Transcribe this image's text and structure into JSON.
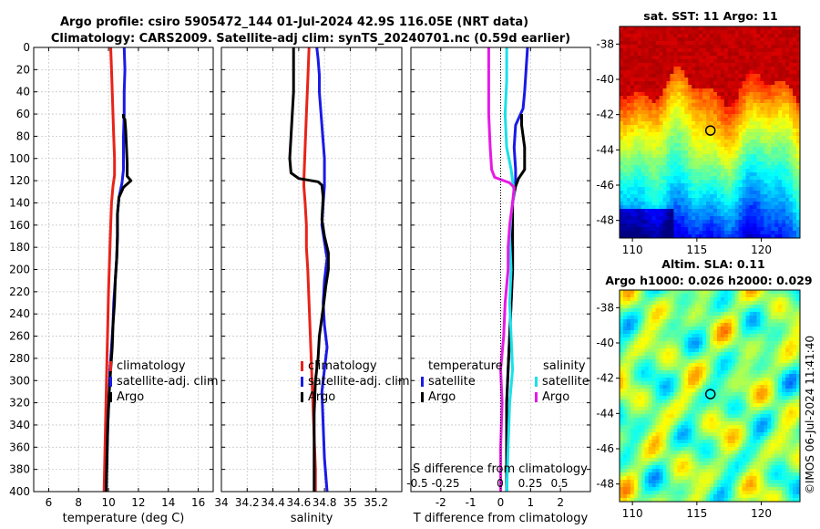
{
  "title_line1": "Argo profile: csiro 5905472_144 01-Jul-2024 42.9S 116.05E (NRT data)",
  "title_line2": "Climatology: CARS2009. Satellite-adj clim: synTS_20240701.nc (0.59d earlier)",
  "sst_title": "sat. SST: 11 Argo: 11",
  "sla_title1": "Altim. SLA: 0.11",
  "sla_title2": "Argo h1000: 0.026 h2000: 0.029",
  "watermark": "©IMOS 06-Jul-2024 11:41:40",
  "colors": {
    "climatology": "#e8231a",
    "satellite": "#1a1ae6",
    "argo": "#000000",
    "salinity_sat": "#19e1e8",
    "salinity_argo": "#e619e6",
    "grid": "#c8c8c8"
  },
  "chart_data": [
    {
      "type": "line",
      "name": "temperature-panel",
      "xlabel": "temperature (deg C)",
      "ylabel": "",
      "xlim": [
        5,
        17
      ],
      "ylim": [
        400,
        0
      ],
      "xticks": [
        6,
        8,
        10,
        12,
        14,
        16
      ],
      "yticks": [
        0,
        20,
        40,
        60,
        80,
        100,
        120,
        140,
        160,
        180,
        200,
        220,
        240,
        260,
        280,
        300,
        320,
        340,
        360,
        380,
        400
      ],
      "legend": [
        "climatology",
        "satellite-adj. clim",
        "Argo"
      ],
      "series": [
        {
          "name": "climatology",
          "color_key": "climatology",
          "points": [
            [
              10.15,
              0
            ],
            [
              10.2,
              20
            ],
            [
              10.25,
              40
            ],
            [
              10.3,
              60
            ],
            [
              10.35,
              80
            ],
            [
              10.4,
              100
            ],
            [
              10.4,
              115
            ],
            [
              10.3,
              125
            ],
            [
              10.2,
              140
            ],
            [
              10.15,
              160
            ],
            [
              10.1,
              180
            ],
            [
              10.05,
              200
            ],
            [
              10.0,
              220
            ],
            [
              9.95,
              250
            ],
            [
              9.9,
              280
            ],
            [
              9.85,
              310
            ],
            [
              9.8,
              340
            ],
            [
              9.75,
              370
            ],
            [
              9.7,
              400
            ]
          ]
        },
        {
          "name": "satellite-adj. clim",
          "color_key": "satellite",
          "points": [
            [
              11.05,
              0
            ],
            [
              11.1,
              20
            ],
            [
              11.05,
              40
            ],
            [
              11.05,
              60
            ],
            [
              11.0,
              80
            ],
            [
              11.0,
              100
            ],
            [
              11.0,
              110
            ],
            [
              10.9,
              122
            ],
            [
              10.7,
              135
            ],
            [
              10.6,
              150
            ],
            [
              10.6,
              170
            ],
            [
              10.55,
              190
            ],
            [
              10.45,
              210
            ],
            [
              10.35,
              230
            ],
            [
              10.3,
              250
            ],
            [
              10.2,
              270
            ],
            [
              10.1,
              290
            ],
            [
              10.05,
              310
            ],
            [
              9.95,
              340
            ],
            [
              9.9,
              370
            ],
            [
              9.85,
              400
            ]
          ]
        },
        {
          "name": "Argo",
          "color_key": "argo",
          "points": [
            [
              11.0,
              60
            ],
            [
              11.0,
              63
            ],
            [
              11.1,
              65
            ],
            [
              11.15,
              75
            ],
            [
              11.2,
              90
            ],
            [
              11.25,
              105
            ],
            [
              11.25,
              116
            ],
            [
              11.5,
              120
            ],
            [
              11.0,
              126
            ],
            [
              10.7,
              135
            ],
            [
              10.6,
              150
            ],
            [
              10.6,
              170
            ],
            [
              10.55,
              190
            ],
            [
              10.45,
              210
            ],
            [
              10.4,
              230
            ],
            [
              10.3,
              250
            ],
            [
              10.25,
              270
            ],
            [
              10.15,
              290
            ],
            [
              10.05,
              310
            ],
            [
              9.95,
              340
            ],
            [
              9.9,
              370
            ],
            [
              9.85,
              400
            ]
          ]
        }
      ]
    },
    {
      "type": "line",
      "name": "salinity-panel",
      "xlabel": "salinity",
      "ylabel": "",
      "xlim": [
        34,
        35.4
      ],
      "ylim": [
        400,
        0
      ],
      "xticks": [
        34,
        34.2,
        34.4,
        34.6,
        34.8,
        35,
        35.2
      ],
      "legend": [
        "climatology",
        "satellite-adj. clim",
        "Argo"
      ],
      "series": [
        {
          "name": "climatology",
          "color_key": "climatology",
          "points": [
            [
              34.68,
              0
            ],
            [
              34.67,
              30
            ],
            [
              34.66,
              60
            ],
            [
              34.65,
              90
            ],
            [
              34.64,
              120
            ],
            [
              34.64,
              125
            ],
            [
              34.65,
              140
            ],
            [
              34.66,
              160
            ],
            [
              34.66,
              180
            ],
            [
              34.67,
              200
            ],
            [
              34.68,
              230
            ],
            [
              34.69,
              260
            ],
            [
              34.7,
              290
            ],
            [
              34.71,
              320
            ],
            [
              34.72,
              350
            ],
            [
              34.73,
              380
            ],
            [
              34.73,
              400
            ]
          ]
        },
        {
          "name": "satellite-adj. clim",
          "color_key": "satellite",
          "points": [
            [
              34.74,
              0
            ],
            [
              34.75,
              10
            ],
            [
              34.76,
              25
            ],
            [
              34.76,
              40
            ],
            [
              34.77,
              55
            ],
            [
              34.78,
              70
            ],
            [
              34.79,
              85
            ],
            [
              34.8,
              100
            ],
            [
              34.8,
              115
            ],
            [
              34.8,
              125
            ],
            [
              34.79,
              140
            ],
            [
              34.78,
              160
            ],
            [
              34.8,
              175
            ],
            [
              34.82,
              190
            ],
            [
              34.8,
              210
            ],
            [
              34.79,
              230
            ],
            [
              34.8,
              250
            ],
            [
              34.82,
              270
            ],
            [
              34.8,
              290
            ],
            [
              34.78,
              310
            ],
            [
              34.79,
              340
            ],
            [
              34.8,
              370
            ],
            [
              34.82,
              400
            ]
          ]
        },
        {
          "name": "Argo",
          "color_key": "argo",
          "points": [
            [
              34.56,
              0
            ],
            [
              34.56,
              20
            ],
            [
              34.56,
              40
            ],
            [
              34.55,
              60
            ],
            [
              34.54,
              80
            ],
            [
              34.53,
              100
            ],
            [
              34.54,
              113
            ],
            [
              34.6,
              118
            ],
            [
              34.75,
              121
            ],
            [
              34.78,
              124
            ],
            [
              34.79,
              135
            ],
            [
              34.78,
              155
            ],
            [
              34.8,
              170
            ],
            [
              34.83,
              185
            ],
            [
              34.83,
              200
            ],
            [
              34.81,
              215
            ],
            [
              34.79,
              235
            ],
            [
              34.76,
              260
            ],
            [
              34.75,
              280
            ],
            [
              34.73,
              300
            ],
            [
              34.72,
              330
            ],
            [
              34.72,
              360
            ],
            [
              34.72,
              400
            ]
          ]
        }
      ]
    },
    {
      "type": "line",
      "name": "difference-panel",
      "xlabel": "T difference from climatology",
      "xlabel_top": "S difference from climatology",
      "xlim": [
        -3,
        3
      ],
      "ylim": [
        400,
        0
      ],
      "xticks_T": [
        -2,
        -1,
        0,
        1,
        2
      ],
      "xticks_S": [
        "-0.5",
        "-0.25",
        "0",
        "0.25",
        "0.5"
      ],
      "legend_temperature": [
        "temperature",
        "satellite",
        "Argo"
      ],
      "legend_salinity": [
        "salinity",
        "satellite",
        "Argo"
      ],
      "series": [
        {
          "name": "T satellite",
          "color_key": "satellite",
          "points": [
            [
              0.9,
              0
            ],
            [
              0.85,
              20
            ],
            [
              0.8,
              40
            ],
            [
              0.75,
              55
            ],
            [
              0.5,
              70
            ],
            [
              0.45,
              90
            ],
            [
              0.5,
              110
            ],
            [
              0.5,
              120
            ],
            [
              0.4,
              140
            ],
            [
              0.35,
              160
            ],
            [
              0.4,
              180
            ],
            [
              0.4,
              200
            ],
            [
              0.35,
              230
            ],
            [
              0.3,
              260
            ],
            [
              0.25,
              290
            ],
            [
              0.2,
              320
            ],
            [
              0.2,
              360
            ],
            [
              0.2,
              400
            ]
          ]
        },
        {
          "name": "T Argo",
          "color_key": "argo",
          "points": [
            [
              0.7,
              60
            ],
            [
              0.7,
              70
            ],
            [
              0.8,
              90
            ],
            [
              0.8,
              110
            ],
            [
              0.6,
              118
            ],
            [
              0.5,
              125
            ],
            [
              0.4,
              140
            ],
            [
              0.4,
              170
            ],
            [
              0.4,
              200
            ],
            [
              0.35,
              230
            ],
            [
              0.3,
              260
            ],
            [
              0.25,
              290
            ],
            [
              0.2,
              320
            ],
            [
              0.2,
              360
            ],
            [
              0.2,
              400
            ]
          ]
        },
        {
          "name": "S satellite",
          "color_key": "salinity_sat",
          "points": [
            [
              0.2,
              0
            ],
            [
              0.2,
              30
            ],
            [
              0.15,
              60
            ],
            [
              0.2,
              90
            ],
            [
              0.35,
              110
            ],
            [
              0.4,
              120
            ],
            [
              0.45,
              130
            ],
            [
              0.35,
              150
            ],
            [
              0.3,
              170
            ],
            [
              0.35,
              200
            ],
            [
              0.3,
              230
            ],
            [
              0.35,
              260
            ],
            [
              0.4,
              290
            ],
            [
              0.3,
              320
            ],
            [
              0.25,
              360
            ],
            [
              0.2,
              400
            ]
          ]
        },
        {
          "name": "S Argo",
          "color_key": "salinity_argo",
          "points": [
            [
              -0.4,
              0
            ],
            [
              -0.4,
              30
            ],
            [
              -0.4,
              60
            ],
            [
              -0.35,
              90
            ],
            [
              -0.3,
              110
            ],
            [
              -0.2,
              117
            ],
            [
              0.3,
              122
            ],
            [
              0.45,
              126
            ],
            [
              0.4,
              140
            ],
            [
              0.3,
              160
            ],
            [
              0.25,
              180
            ],
            [
              0.25,
              200
            ],
            [
              0.15,
              230
            ],
            [
              0.1,
              260
            ],
            [
              0.0,
              290
            ],
            [
              0.05,
              320
            ],
            [
              0.0,
              360
            ],
            [
              0.0,
              400
            ]
          ]
        }
      ]
    },
    {
      "type": "heatmap",
      "name": "sst-map",
      "title": "sat. SST: 11 Argo: 11",
      "xlim": [
        109,
        123
      ],
      "ylim": [
        -49,
        -37
      ],
      "xticks": [
        110,
        115,
        120
      ],
      "yticks": [
        -38,
        -40,
        -42,
        -44,
        -46,
        -48
      ],
      "marker": {
        "lon": 116.05,
        "lat": -42.9
      }
    },
    {
      "type": "heatmap",
      "name": "sla-map",
      "title": "Altim. SLA: 0.11",
      "xlim": [
        109,
        123
      ],
      "ylim": [
        -49,
        -37
      ],
      "xticks": [
        110,
        115,
        120
      ],
      "yticks": [
        -38,
        -40,
        -42,
        -44,
        -46,
        -48
      ],
      "marker": {
        "lon": 116.05,
        "lat": -42.9
      }
    }
  ]
}
